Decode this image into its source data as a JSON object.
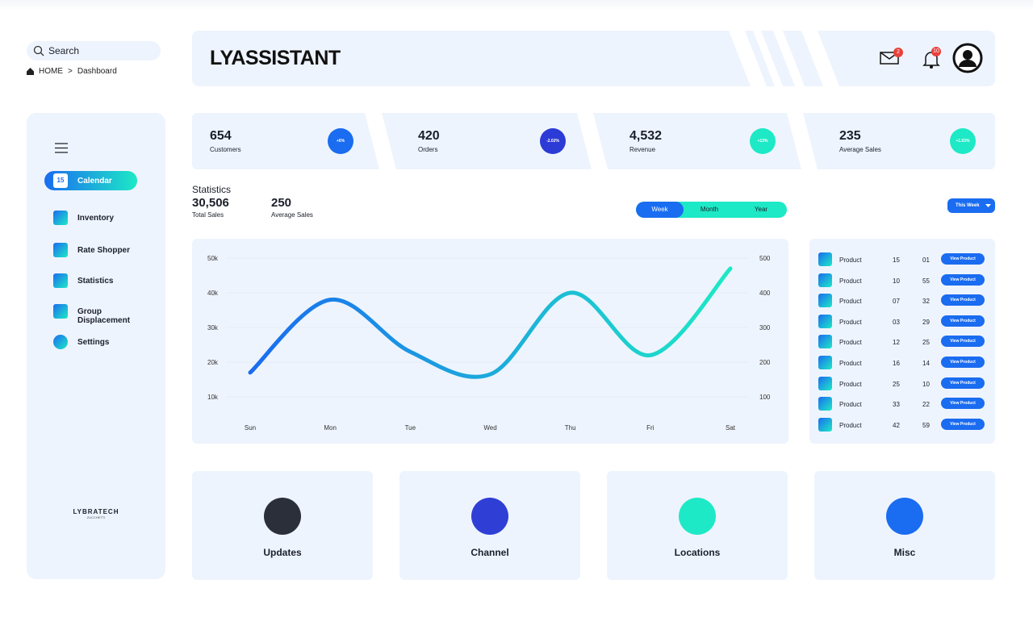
{
  "search": {
    "placeholder": "Search"
  },
  "breadcrumb": {
    "home": "HOME",
    "separator": ">",
    "current": "Dashboard"
  },
  "brand": "LYASSISTANT",
  "notifications": {
    "mail": "2",
    "bell": "10"
  },
  "sidebar": {
    "calendar_day": "15",
    "items": [
      "Calendar",
      "Inventory",
      "Rate Shopper",
      "Statistics",
      "Group Displacement",
      "Settings"
    ],
    "active": 0,
    "footer": {
      "name": "LYBRATECH",
      "sub": "ZUCCHETTI"
    }
  },
  "stats": [
    {
      "value": "654",
      "label": "Customers",
      "change": "+6%",
      "color": "#1a6cf0"
    },
    {
      "value": "420",
      "label": "Orders",
      "change": "-2.02%",
      "color": "#2c3ad6"
    },
    {
      "value": "4,532",
      "label": "Revenue",
      "change": "+13%",
      "color": "#1de9c6"
    },
    {
      "value": "235",
      "label": "Average Sales",
      "change": "+1.03%",
      "color": "#1de9c6"
    }
  ],
  "statistics": {
    "title": "Statistics",
    "total": {
      "value": "30,506",
      "label": "Total Sales"
    },
    "average": {
      "value": "250",
      "label": "Average Sales"
    }
  },
  "tabs": [
    "Week",
    "Month",
    "Year"
  ],
  "active_tab": 0,
  "period_select": "This Week",
  "chart": {
    "type": "line",
    "categories": [
      "Sun",
      "Mon",
      "Tue",
      "Wed",
      "Thu",
      "Fri",
      "Sat"
    ],
    "values": [
      17000,
      38000,
      23000,
      16500,
      40000,
      22000,
      47000
    ],
    "colors": [
      "#1a6cf0",
      "#1de9c6"
    ],
    "ylim": [
      10000,
      50000
    ],
    "yticks": [
      {
        "value": 10000,
        "label": "10k"
      },
      {
        "value": 20000,
        "label": "20k"
      },
      {
        "value": 30000,
        "label": "30k"
      },
      {
        "value": 40000,
        "label": "40k"
      },
      {
        "value": 50000,
        "label": "50k"
      }
    ],
    "y2lim": [
      100,
      500
    ],
    "y2ticks": [
      100,
      200,
      300,
      400,
      500
    ],
    "grid": true
  },
  "products": {
    "button": "View Product",
    "rows": [
      [
        "Product",
        "15",
        "01"
      ],
      [
        "Product",
        "10",
        "55"
      ],
      [
        "Product",
        "07",
        "32"
      ],
      [
        "Product",
        "03",
        "29"
      ],
      [
        "Product",
        "12",
        "25"
      ],
      [
        "Product",
        "16",
        "14"
      ],
      [
        "Product",
        "25",
        "10"
      ],
      [
        "Product",
        "33",
        "22"
      ],
      [
        "Product",
        "42",
        "59"
      ]
    ]
  },
  "cards": [
    "Updates",
    "Channel",
    "Locations",
    "Misc"
  ]
}
